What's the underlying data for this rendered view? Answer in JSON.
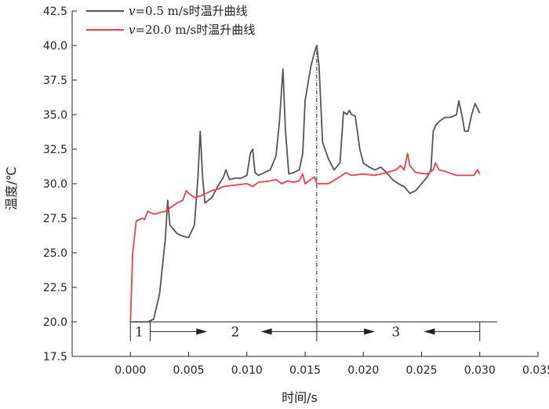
{
  "chart_data": {
    "type": "line",
    "xlabel": "时间/s",
    "ylabel": "温度/℃",
    "xlim": [
      -0.005,
      0.035
    ],
    "ylim": [
      17.5,
      42.5
    ],
    "xticks": [
      0.0,
      0.005,
      0.01,
      0.015,
      0.02,
      0.025,
      0.03,
      0.035
    ],
    "xtick_labels": [
      "0.000",
      "0.005",
      "0.010",
      "0.015",
      "0.020",
      "0.025",
      "0.030",
      "0.035"
    ],
    "yticks": [
      17.5,
      20.0,
      22.5,
      25.0,
      27.5,
      30.0,
      32.5,
      35.0,
      37.5,
      40.0,
      42.5
    ],
    "ytick_labels": [
      "17.5",
      "20.0",
      "22.5",
      "25.0",
      "27.5",
      "30.0",
      "32.5",
      "35.0",
      "37.5",
      "40.0",
      "42.5"
    ],
    "grid": false,
    "legend_position": "top-left",
    "series": [
      {
        "name": "v=0.5 m/s时温升曲线",
        "legend_var": "v",
        "legend_rest": "=0.5 m/s时温升曲线",
        "color": "#555555",
        "points": [
          [
            0.0,
            20.0
          ],
          [
            0.0015,
            20.0
          ],
          [
            0.002,
            20.2
          ],
          [
            0.0025,
            22.0
          ],
          [
            0.003,
            26.0
          ],
          [
            0.0032,
            28.8
          ],
          [
            0.0034,
            27.0
          ],
          [
            0.004,
            26.4
          ],
          [
            0.0045,
            26.2
          ],
          [
            0.005,
            26.1
          ],
          [
            0.0055,
            27.0
          ],
          [
            0.0058,
            30.5
          ],
          [
            0.006,
            33.8
          ],
          [
            0.0062,
            30.5
          ],
          [
            0.0064,
            28.6
          ],
          [
            0.007,
            29.0
          ],
          [
            0.0075,
            29.8
          ],
          [
            0.008,
            30.5
          ],
          [
            0.0082,
            31.0
          ],
          [
            0.0085,
            30.3
          ],
          [
            0.009,
            30.4
          ],
          [
            0.0095,
            30.4
          ],
          [
            0.01,
            30.6
          ],
          [
            0.0103,
            32.2
          ],
          [
            0.0105,
            32.5
          ],
          [
            0.0107,
            30.8
          ],
          [
            0.011,
            30.6
          ],
          [
            0.0115,
            30.8
          ],
          [
            0.012,
            31.0
          ],
          [
            0.0125,
            32.0
          ],
          [
            0.0128,
            34.5
          ],
          [
            0.0131,
            38.3
          ],
          [
            0.0133,
            34.0
          ],
          [
            0.0136,
            30.7
          ],
          [
            0.014,
            30.8
          ],
          [
            0.0145,
            31.0
          ],
          [
            0.0148,
            32.2
          ],
          [
            0.015,
            36.0
          ],
          [
            0.0155,
            38.5
          ],
          [
            0.0158,
            39.5
          ],
          [
            0.016,
            40.0
          ],
          [
            0.0162,
            38.5
          ],
          [
            0.0165,
            33.0
          ],
          [
            0.017,
            31.8
          ],
          [
            0.0175,
            31.0
          ],
          [
            0.018,
            31.5
          ],
          [
            0.0183,
            35.2
          ],
          [
            0.0186,
            35.0
          ],
          [
            0.0188,
            35.3
          ],
          [
            0.019,
            35.0
          ],
          [
            0.0193,
            34.9
          ],
          [
            0.0197,
            32.5
          ],
          [
            0.02,
            31.5
          ],
          [
            0.0205,
            31.2
          ],
          [
            0.021,
            31.0
          ],
          [
            0.0215,
            31.2
          ],
          [
            0.022,
            30.8
          ],
          [
            0.0225,
            30.3
          ],
          [
            0.023,
            30.0
          ],
          [
            0.0235,
            29.8
          ],
          [
            0.024,
            29.3
          ],
          [
            0.0245,
            29.5
          ],
          [
            0.025,
            30.0
          ],
          [
            0.0255,
            30.5
          ],
          [
            0.0258,
            31.0
          ],
          [
            0.026,
            33.8
          ],
          [
            0.0262,
            34.2
          ],
          [
            0.0265,
            34.5
          ],
          [
            0.027,
            34.8
          ],
          [
            0.0275,
            34.8
          ],
          [
            0.028,
            35.0
          ],
          [
            0.0282,
            36.0
          ],
          [
            0.0285,
            34.8
          ],
          [
            0.0287,
            33.8
          ],
          [
            0.029,
            33.8
          ],
          [
            0.0293,
            35.0
          ],
          [
            0.0296,
            35.8
          ],
          [
            0.03,
            35.1
          ]
        ]
      },
      {
        "name": "v=20.0 m/s时温升曲线",
        "legend_var": "v",
        "legend_rest": "=20.0 m/s时温升曲线",
        "color": "#e8414a",
        "points": [
          [
            0.0,
            20.0
          ],
          [
            0.0002,
            25.0
          ],
          [
            0.0005,
            27.3
          ],
          [
            0.001,
            27.5
          ],
          [
            0.0012,
            27.4
          ],
          [
            0.0015,
            28.0
          ],
          [
            0.002,
            27.8
          ],
          [
            0.0025,
            27.9
          ],
          [
            0.003,
            28.0
          ],
          [
            0.0035,
            28.3
          ],
          [
            0.004,
            28.6
          ],
          [
            0.0045,
            28.8
          ],
          [
            0.0048,
            29.5
          ],
          [
            0.005,
            29.3
          ],
          [
            0.0055,
            29.0
          ],
          [
            0.006,
            29.1
          ],
          [
            0.0065,
            29.3
          ],
          [
            0.007,
            29.5
          ],
          [
            0.0075,
            29.6
          ],
          [
            0.008,
            29.8
          ],
          [
            0.009,
            29.9
          ],
          [
            0.01,
            30.0
          ],
          [
            0.0105,
            29.8
          ],
          [
            0.011,
            30.1
          ],
          [
            0.012,
            30.2
          ],
          [
            0.0125,
            30.3
          ],
          [
            0.013,
            30.0
          ],
          [
            0.0135,
            30.2
          ],
          [
            0.014,
            30.1
          ],
          [
            0.0145,
            30.2
          ],
          [
            0.0148,
            30.7
          ],
          [
            0.015,
            30.0
          ],
          [
            0.0155,
            30.3
          ],
          [
            0.0158,
            30.5
          ],
          [
            0.016,
            30.0
          ],
          [
            0.017,
            30.0
          ],
          [
            0.018,
            30.5
          ],
          [
            0.0185,
            30.8
          ],
          [
            0.019,
            30.6
          ],
          [
            0.02,
            30.7
          ],
          [
            0.021,
            30.6
          ],
          [
            0.022,
            30.8
          ],
          [
            0.0228,
            31.0
          ],
          [
            0.0232,
            31.3
          ],
          [
            0.0235,
            31.0
          ],
          [
            0.0238,
            32.2
          ],
          [
            0.024,
            31.3
          ],
          [
            0.0245,
            30.8
          ],
          [
            0.0255,
            30.7
          ],
          [
            0.026,
            31.0
          ],
          [
            0.0262,
            31.5
          ],
          [
            0.0265,
            31.0
          ],
          [
            0.027,
            30.9
          ],
          [
            0.028,
            30.6
          ],
          [
            0.029,
            30.6
          ],
          [
            0.0295,
            30.6
          ],
          [
            0.0298,
            31.0
          ],
          [
            0.03,
            30.7
          ]
        ]
      }
    ],
    "vertical_marker_x": 0.016,
    "phases": {
      "baseline_y": 20.0,
      "baseline_end_x": 0.0315,
      "bracket_bottom_y": 18.6,
      "boundaries": [
        0.0,
        0.0017,
        0.016,
        0.03
      ],
      "labels": [
        {
          "text": "1",
          "x": 0.00075
        },
        {
          "text": "2",
          "x": 0.009
        },
        {
          "text": "3",
          "x": 0.0228
        }
      ],
      "arrows": [
        {
          "from": 0.0017,
          "to": 0.0066
        },
        {
          "from": 0.016,
          "to": 0.0112
        },
        {
          "from": 0.016,
          "to": 0.021
        },
        {
          "from": 0.03,
          "to": 0.0252
        }
      ]
    }
  }
}
